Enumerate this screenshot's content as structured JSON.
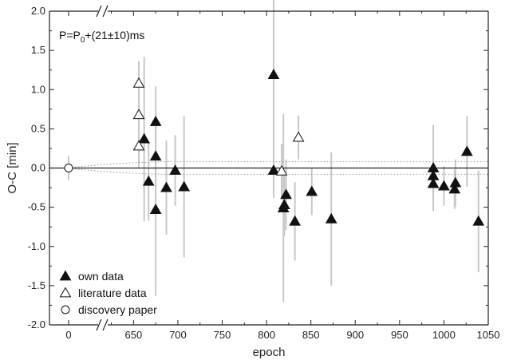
{
  "chart_data": {
    "type": "scatter",
    "xlabel": "epoch",
    "ylabel": "O-C [min]",
    "annotation": {
      "prefix": "P=P",
      "subscript": "0",
      "suffix": "+(21±10)ms"
    },
    "xlim": [
      -30,
      1055
    ],
    "ylim": [
      -2.0,
      2.0
    ],
    "x_axis_break_after": 0,
    "xticks": [
      "0",
      "650",
      "700",
      "750",
      "800",
      "850",
      "900",
      "950",
      "1000",
      "1050"
    ],
    "yticks": [
      "-2.0",
      "-1.5",
      "-1.0",
      "-0.5",
      "0.0",
      "0.5",
      "1.0",
      "1.5",
      "2.0"
    ],
    "legend": [
      "own data",
      "literature data",
      "discovery paper"
    ],
    "legend_position": "bottom-left",
    "reference_line": {
      "y": 0.0,
      "style": "solid"
    },
    "uncertainty_band": {
      "y_upper": 0.08,
      "y_lower": -0.08,
      "style": "dotted"
    },
    "series": [
      {
        "name": "own data",
        "marker": "filled-triangle",
        "points": [
          {
            "x": 662,
            "y": 0.37,
            "err": 1.05
          },
          {
            "x": 667,
            "y": -0.17,
            "err": 0.5
          },
          {
            "x": 675,
            "y": 0.59,
            "err": 0.45
          },
          {
            "x": 675,
            "y": -0.53,
            "err": 1.1
          },
          {
            "x": 675,
            "y": 0.15,
            "err": 0.55
          },
          {
            "x": 687,
            "y": -0.25,
            "err": 0.6
          },
          {
            "x": 697,
            "y": -0.03,
            "err": 0.45
          },
          {
            "x": 707,
            "y": -0.24,
            "err": 0.9
          },
          {
            "x": 808,
            "y": 1.19,
            "err": 1.05
          },
          {
            "x": 808,
            "y": -0.03,
            "err": 0.35
          },
          {
            "x": 819,
            "y": -0.51,
            "err": 1.2
          },
          {
            "x": 820,
            "y": -0.47,
            "err": 0.4
          },
          {
            "x": 822,
            "y": -0.34,
            "err": 0.45
          },
          {
            "x": 832,
            "y": -0.68,
            "err": 0.5
          },
          {
            "x": 851,
            "y": -0.3,
            "err": 0.3
          },
          {
            "x": 873,
            "y": -0.65,
            "err": 0.85
          },
          {
            "x": 988,
            "y": 0.0,
            "err": 0.55
          },
          {
            "x": 988,
            "y": -0.1,
            "err": 0.2
          },
          {
            "x": 988,
            "y": -0.2,
            "err": 0.25
          },
          {
            "x": 1000,
            "y": -0.23,
            "err": 0.25
          },
          {
            "x": 1012,
            "y": -0.27,
            "err": 0.25
          },
          {
            "x": 1013,
            "y": -0.19,
            "err": 0.3
          },
          {
            "x": 1026,
            "y": 0.21,
            "err": 0.45
          },
          {
            "x": 1039,
            "y": -0.68,
            "err": 0.65
          }
        ]
      },
      {
        "name": "literature data",
        "marker": "open-triangle",
        "points": [
          {
            "x": 656,
            "y": 1.08,
            "err": 0.28
          },
          {
            "x": 656,
            "y": 0.68,
            "err": 0.28
          },
          {
            "x": 656,
            "y": 0.28,
            "err": 0.28
          },
          {
            "x": 817,
            "y": -0.04,
            "err": 0.35
          },
          {
            "x": 836,
            "y": 0.39,
            "err": 0.28
          }
        ]
      },
      {
        "name": "discovery paper",
        "marker": "open-circle",
        "points": [
          {
            "x": 0,
            "y": 0.0,
            "err": 0.15
          }
        ]
      }
    ]
  }
}
